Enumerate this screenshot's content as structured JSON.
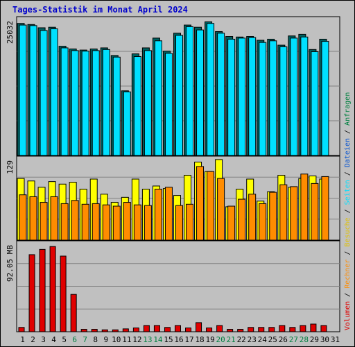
{
  "title": "Tages-Statistik im Monat April 2024",
  "colors": {
    "title": "#0000cc",
    "hits_front": "#00e0ff",
    "hits_back": "#006060",
    "sites": "#ffff00",
    "visits": "#ff8c00",
    "volume": "#e00000",
    "weekend": "#008040",
    "weekday": "#000000",
    "plot_bg": "#c0c0c0"
  },
  "legend": {
    "volumen": "Volumen",
    "rechner": "Rechner",
    "besuche": "Besuche",
    "seiten": "Seiten",
    "dateien": "Dateien",
    "anfragen": "Anfragen",
    "sep": " / "
  },
  "chart_data": [
    {
      "type": "bar",
      "title": "Tages-Statistik im Monat April 2024",
      "ylabel_max": "25032",
      "ylim": [
        0,
        25032
      ],
      "categories": [
        "1",
        "2",
        "3",
        "4",
        "5",
        "6",
        "7",
        "8",
        "9",
        "10",
        "11",
        "12",
        "13",
        "14",
        "15",
        "16",
        "17",
        "18",
        "19",
        "20",
        "21",
        "22",
        "23",
        "24",
        "25",
        "26",
        "27",
        "28",
        "29",
        "30",
        "31"
      ],
      "weekend_days": [
        6,
        7,
        13,
        14,
        20,
        21,
        27,
        28
      ],
      "series": [
        {
          "name": "Anfragen",
          "values": [
            24300,
            24100,
            23500,
            23600,
            20100,
            19600,
            19400,
            19600,
            19800,
            18400,
            11900,
            18700,
            19800,
            21600,
            19200,
            22500,
            24000,
            23600,
            24600,
            22800,
            21900,
            21800,
            21900,
            21200,
            21400,
            20300,
            22000,
            22300,
            19500,
            21400,
            null
          ]
        },
        {
          "name": "Dateien",
          "values": [
            24000,
            23900,
            23000,
            23300,
            19800,
            19300,
            19200,
            19300,
            19500,
            18100,
            11700,
            18200,
            19300,
            21100,
            18800,
            22100,
            23700,
            23100,
            24300,
            22500,
            21400,
            21600,
            21700,
            20800,
            21100,
            20000,
            21600,
            21800,
            19100,
            21000,
            null
          ]
        }
      ]
    },
    {
      "type": "bar",
      "ylabel_max": "129",
      "ylim": [
        0,
        129
      ],
      "series": [
        {
          "name": "Seiten",
          "values": [
            98,
            94,
            84,
            93,
            89,
            92,
            81,
            97,
            73,
            60,
            68,
            97,
            81,
            86,
            82,
            71,
            103,
            124,
            109,
            128,
            53,
            81,
            97,
            62,
            77,
            103,
            84,
            98,
            102,
            97,
            null
          ]
        },
        {
          "name": "Besuche",
          "values": [
            72,
            69,
            60,
            69,
            58,
            63,
            57,
            58,
            56,
            54,
            60,
            56,
            55,
            81,
            84,
            55,
            57,
            117,
            109,
            98,
            54,
            65,
            73,
            58,
            76,
            88,
            85,
            105,
            90,
            101,
            null
          ]
        }
      ]
    },
    {
      "type": "bar",
      "ylabel_max": "92.05 MB",
      "ylim": [
        0,
        92.05
      ],
      "series": [
        {
          "name": "Volumen",
          "values": [
            4.5,
            80.5,
            86,
            89,
            79,
            39,
            2.5,
            2.5,
            2,
            2,
            3,
            4,
            6.5,
            6.5,
            4.5,
            6.5,
            4,
            9.5,
            4,
            6.5,
            2.5,
            2.5,
            4.5,
            4.5,
            4.5,
            6.5,
            4.5,
            6.5,
            8,
            6.5,
            null
          ]
        }
      ]
    }
  ]
}
